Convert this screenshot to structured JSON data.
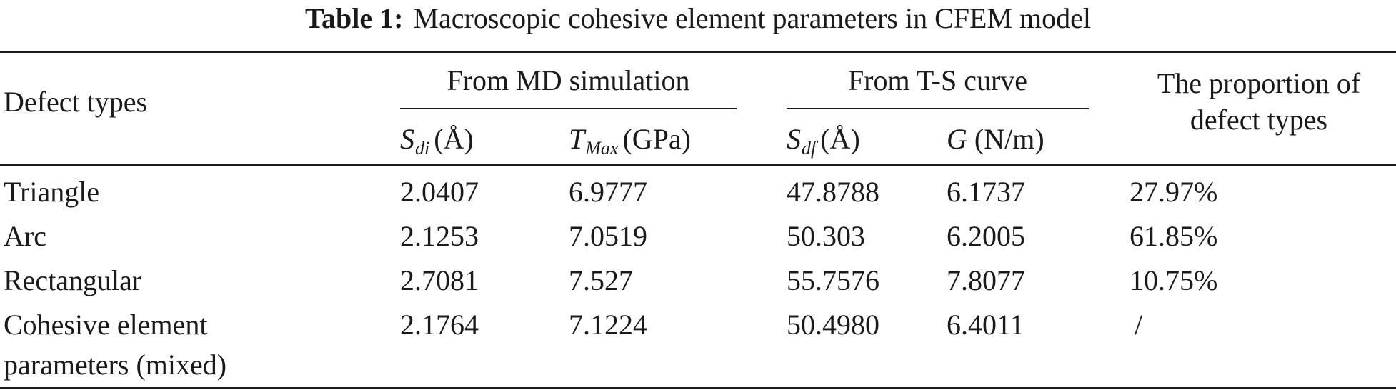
{
  "caption": {
    "label": "Table 1:",
    "text": "Macroscopic cohesive element parameters in CFEM model"
  },
  "header": {
    "defect_types": "Defect types",
    "group_md": "From MD simulation",
    "group_ts": "From T-S curve",
    "proportion_line1": "The proportion of",
    "proportion_line2": "defect types",
    "sdi": {
      "symbol": "S",
      "sub": "di",
      "unit": "(Å)"
    },
    "tmax": {
      "symbol": "T",
      "sub": "Max",
      "unit": "(GPa)"
    },
    "sdf": {
      "symbol": "S",
      "sub": "df",
      "unit": "(Å)"
    },
    "g": {
      "symbol": "G",
      "unit": "(N/m)"
    }
  },
  "rows": [
    {
      "type": "Triangle",
      "sdi": "2.0407",
      "tmax": "6.9777",
      "sdf": "47.8788",
      "g": "6.1737",
      "proportion": "27.97%"
    },
    {
      "type": "Arc",
      "sdi": "2.1253",
      "tmax": "7.0519",
      "sdf": "50.303",
      "g": "6.2005",
      "proportion": "61.85%"
    },
    {
      "type": "Rectangular",
      "sdi": "2.7081",
      "tmax": "7.527",
      "sdf": "55.7576",
      "g": "7.8077",
      "proportion": "10.75%"
    },
    {
      "type_line1": "Cohesive element",
      "type_line2": "parameters (mixed)",
      "sdi": "2.1764",
      "tmax": "7.1224",
      "sdf": "50.4980",
      "g": "6.4011",
      "proportion": "/"
    }
  ]
}
